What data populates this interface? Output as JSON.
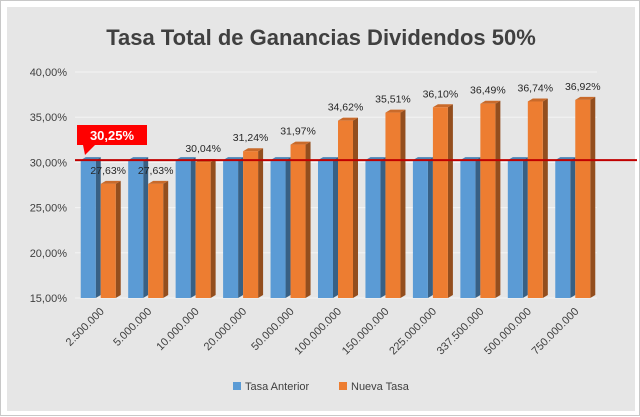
{
  "chart_data": {
    "type": "bar",
    "title": "Tasa Total de Ganancias Dividendos 50%",
    "xlabel": "",
    "ylabel": "",
    "ylim": [
      15,
      40
    ],
    "yticks": [
      15,
      20,
      25,
      30,
      35,
      40
    ],
    "ytick_labels": [
      "15,00%",
      "20,00%",
      "25,00%",
      "30,00%",
      "35,00%",
      "40,00%"
    ],
    "categories": [
      "2.500.000",
      "5.000.000",
      "10.000.000",
      "20.000.000",
      "50.000.000",
      "100.000.000",
      "150.000.000",
      "225.000.000",
      "337.500.000",
      "500.000.000",
      "750.000.000"
    ],
    "series": [
      {
        "name": "Tasa Anterior",
        "color": "#5b9bd5",
        "values": [
          30.25,
          30.25,
          30.25,
          30.25,
          30.25,
          30.25,
          30.25,
          30.25,
          30.25,
          30.25,
          30.25
        ],
        "labels": []
      },
      {
        "name": "Nueva Tasa",
        "color": "#ed7d31",
        "values": [
          27.63,
          27.63,
          30.04,
          31.24,
          31.97,
          34.62,
          35.51,
          36.1,
          36.49,
          36.74,
          36.92
        ],
        "labels": [
          "27,63%",
          "27,63%",
          "30,04%",
          "31,24%",
          "31,97%",
          "34,62%",
          "35,51%",
          "36,10%",
          "36,49%",
          "36,74%",
          "36,92%"
        ]
      }
    ],
    "reference_line": {
      "value": 30.25,
      "label": "30,25%",
      "color": "#c00000"
    },
    "legend": {
      "position": "bottom",
      "entries": [
        "Tasa Anterior",
        "Nueva Tasa"
      ]
    },
    "grid": true
  }
}
